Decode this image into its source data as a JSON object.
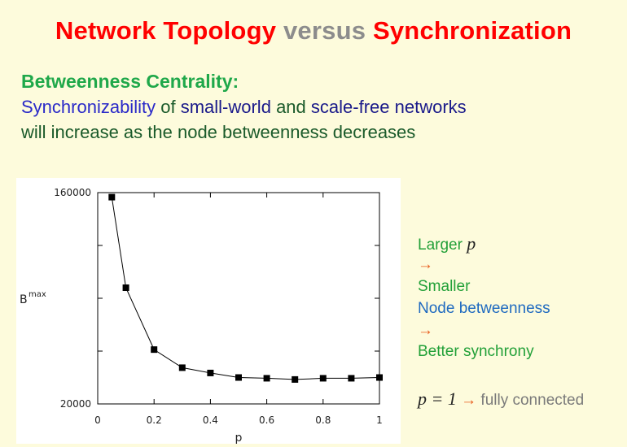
{
  "title": {
    "part1": "Network Topology",
    "part2": "versus",
    "part3": "Synchronization"
  },
  "subheading": "Betweenness Centrality:",
  "text": {
    "l1_a": "Synchronizability",
    "l1_b": "of",
    "l1_c": "small-world",
    "l1_d": "and",
    "l1_e": "scale-free networks",
    "line2": "will increase as the node betweenness decreases"
  },
  "notes": {
    "larger": "Larger",
    "p": "p",
    "arrow": "→",
    "smaller": "Smaller",
    "node_betweenness": "Node betweenness",
    "better": "Better synchrony",
    "p_eq": "p = 1",
    "fully": "fully connected"
  },
  "chart_data": {
    "type": "line",
    "xlabel": "p",
    "ylabel_base": "B",
    "ylabel_sup": "max",
    "xlim": [
      0,
      1
    ],
    "ylim": [
      20000,
      160000
    ],
    "xticks": [
      "0",
      "0.2",
      "0.4",
      "0.6",
      "0.8",
      "1"
    ],
    "yticks": [
      "20000",
      "160000"
    ],
    "x": [
      0.05,
      0.1,
      0.2,
      0.3,
      0.4,
      0.5,
      0.6,
      0.7,
      0.8,
      0.9,
      1.0
    ],
    "y": [
      157000,
      97000,
      56000,
      44000,
      40500,
      37500,
      37000,
      36200,
      37000,
      37000,
      37500
    ]
  }
}
